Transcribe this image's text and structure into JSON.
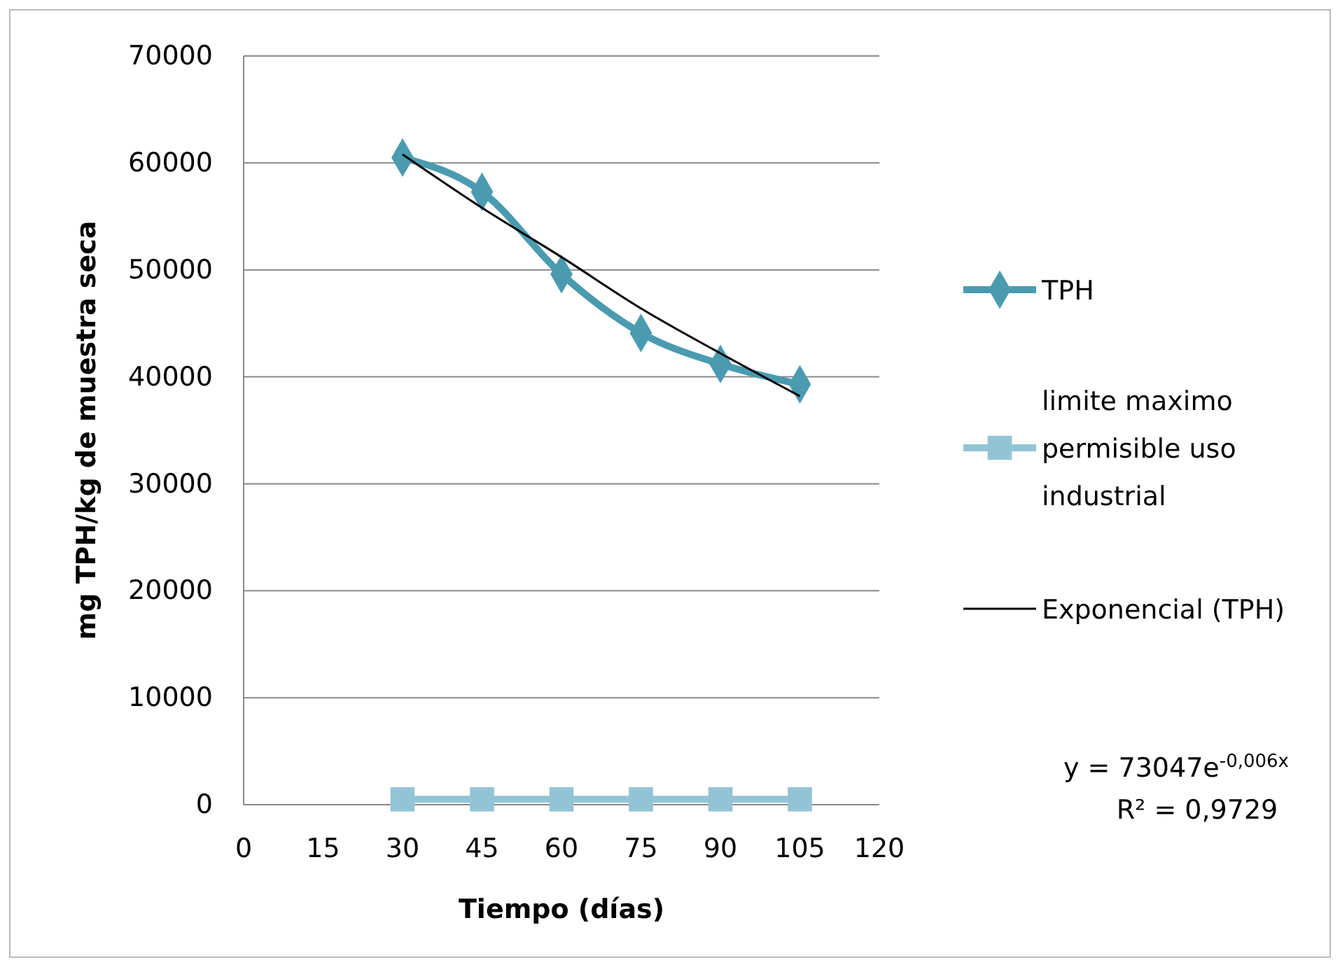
{
  "chart_data": {
    "type": "line",
    "xlabel": "Tiempo (días)",
    "ylabel": "mg TPH/kg de muestra seca",
    "x": [
      30,
      45,
      60,
      75,
      90,
      105
    ],
    "xlim": [
      0,
      120
    ],
    "xticks": [
      0,
      15,
      30,
      45,
      60,
      75,
      90,
      105,
      120
    ],
    "ylim": [
      0,
      70000
    ],
    "yticks": [
      0,
      10000,
      20000,
      30000,
      40000,
      50000,
      60000,
      70000
    ],
    "grid": "y",
    "legend": "right",
    "series": [
      {
        "name": "TPH",
        "color": "#4a9bb0",
        "marker": "diamond",
        "values": [
          60500,
          57300,
          49600,
          44100,
          41200,
          39300
        ]
      },
      {
        "name": "limite maximo permisible uso industrial",
        "color": "#93c4d6",
        "marker": "square",
        "values": [
          500,
          500,
          500,
          500,
          500,
          500
        ]
      },
      {
        "name": "Exponencial (TPH)",
        "color": "#000000",
        "marker": "none",
        "x": [
          30,
          45,
          60,
          75,
          90,
          105
        ],
        "values": [
          60800,
          55800,
          51200,
          46400,
          42200,
          38200
        ]
      }
    ],
    "annotations": [
      "y = 73047e$^{-0,006x}$",
      "R² = 0,9729"
    ]
  }
}
